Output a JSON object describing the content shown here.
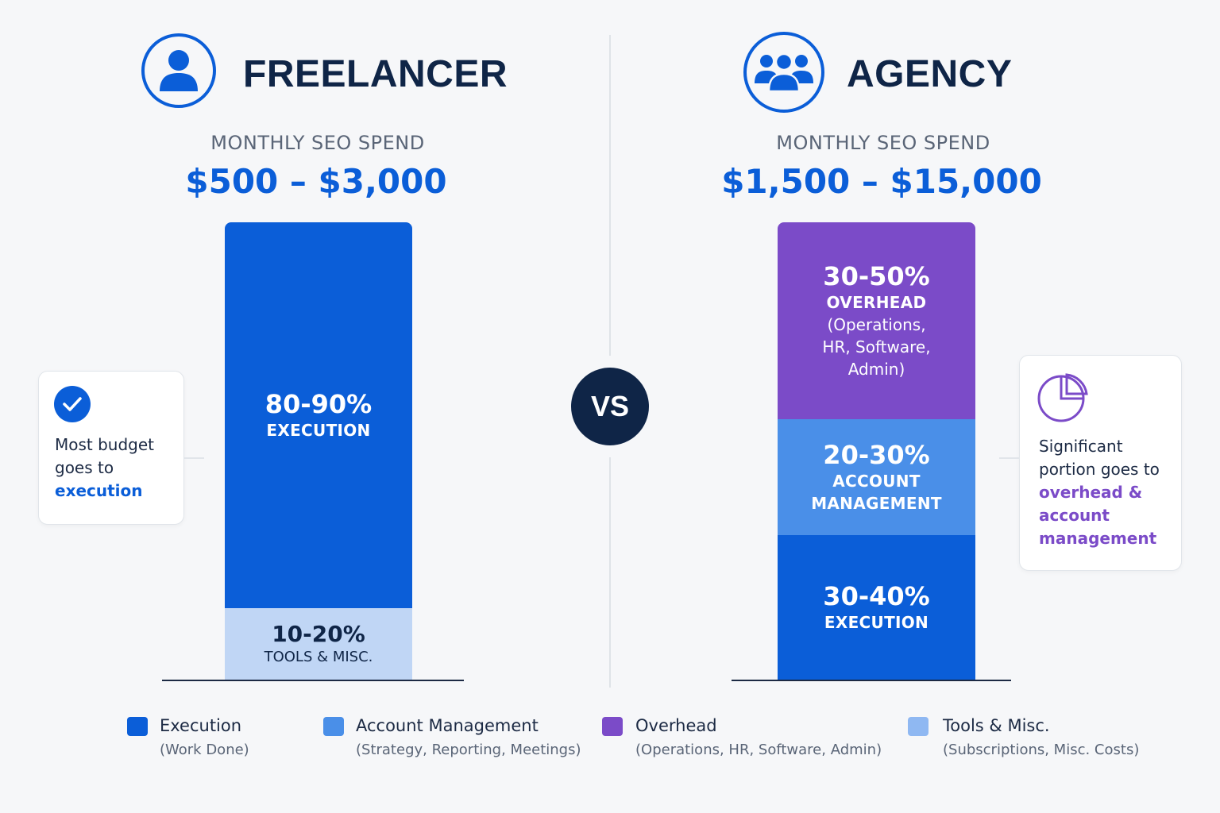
{
  "colors": {
    "execution": "#0b5ed8",
    "account_management": "#4a8fe8",
    "overhead": "#7b4bc8",
    "tools": "#c0d6f5",
    "legend_tools": "#8fb8f2"
  },
  "freelancer": {
    "title": "FREELANCER",
    "icon": "user-icon",
    "spend_label": "MONTHLY SEO SPEND",
    "spend_range": "$500 – $3,000",
    "callout": {
      "icon": "check-circle-icon",
      "text_a": "Most budget",
      "text_b": "goes to",
      "highlight": "execution"
    }
  },
  "vs_label": "VS",
  "agency": {
    "title": "AGENCY",
    "icon": "team-icon",
    "spend_label": "MONTHLY SEO SPEND",
    "spend_range": "$1,500 – $15,000",
    "callout": {
      "icon": "pie-chart-icon",
      "text_a": "Significant",
      "text_b": "portion goes to",
      "highlight_a": "overhead &",
      "highlight_b": "account",
      "highlight_c": "management"
    }
  },
  "chart_data": [
    {
      "type": "bar",
      "title": "FREELANCER",
      "stacked": true,
      "segments": [
        {
          "key": "execution",
          "pct_label": "80-90%",
          "label": "EXECUTION",
          "value_range": [
            80,
            90
          ],
          "share": 0.84
        },
        {
          "key": "tools",
          "pct_label": "10-20%",
          "label": "TOOLS & MISC.",
          "value_range": [
            10,
            20
          ],
          "share": 0.16
        }
      ]
    },
    {
      "type": "bar",
      "title": "AGENCY",
      "stacked": true,
      "segments": [
        {
          "key": "execution",
          "pct_label": "30-40%",
          "label": "EXECUTION",
          "value_range": [
            30,
            40
          ],
          "share": 0.32
        },
        {
          "key": "account_management",
          "pct_label": "20-30%",
          "label": "ACCOUNT",
          "label2": "MANAGEMENT",
          "value_range": [
            20,
            30
          ],
          "share": 0.25
        },
        {
          "key": "overhead",
          "pct_label": "30-50%",
          "label": "OVERHEAD",
          "detail": [
            "(Operations,",
            "HR, Software,",
            "Admin)"
          ],
          "value_range": [
            30,
            50
          ],
          "share": 0.43
        }
      ]
    }
  ],
  "legend": [
    {
      "name": "Execution",
      "desc": "(Work Done)",
      "color_key": "execution"
    },
    {
      "name": "Account Management",
      "desc": "(Strategy, Reporting, Meetings)",
      "color_key": "account_management"
    },
    {
      "name": "Overhead",
      "desc": "(Operations, HR, Software, Admin)",
      "color_key": "overhead"
    },
    {
      "name": "Tools & Misc.",
      "desc": "(Subscriptions, Misc. Costs)",
      "color_key": "legend_tools"
    }
  ]
}
